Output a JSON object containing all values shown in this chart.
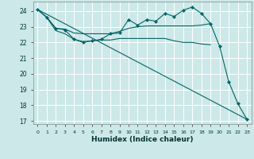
{
  "xlabel": "Humidex (Indice chaleur)",
  "bg_color": "#cce8e8",
  "grid_color": "#ffffff",
  "line_color": "#006666",
  "xlim": [
    -0.5,
    23.5
  ],
  "ylim": [
    16.8,
    24.6
  ],
  "yticks": [
    17,
    18,
    19,
    20,
    21,
    22,
    23,
    24
  ],
  "xticks": [
    0,
    1,
    2,
    3,
    4,
    5,
    6,
    7,
    8,
    9,
    10,
    11,
    12,
    13,
    14,
    15,
    16,
    17,
    18,
    19,
    20,
    21,
    22,
    23
  ],
  "series": [
    {
      "x": [
        0,
        1,
        2,
        3,
        4,
        5,
        6,
        7,
        8,
        9,
        10,
        11,
        12,
        13,
        14,
        15,
        16,
        17,
        18,
        19,
        20,
        21,
        22,
        23
      ],
      "y": [
        24.1,
        23.6,
        22.9,
        22.8,
        22.2,
        22.0,
        22.1,
        22.2,
        22.55,
        22.6,
        23.45,
        23.1,
        23.45,
        23.35,
        23.85,
        23.65,
        24.05,
        24.25,
        23.85,
        23.2,
        21.75,
        19.5,
        18.1,
        17.1
      ],
      "marker": true
    },
    {
      "x": [
        0,
        1,
        2,
        3,
        4,
        5,
        6,
        7,
        8,
        9,
        10,
        11,
        12,
        13,
        14,
        15,
        16,
        17,
        18,
        19
      ],
      "y": [
        24.1,
        23.6,
        22.9,
        22.85,
        22.6,
        22.55,
        22.55,
        22.55,
        22.55,
        22.7,
        22.9,
        23.0,
        23.05,
        23.05,
        23.05,
        23.05,
        23.05,
        23.05,
        23.1,
        23.2
      ],
      "marker": false
    },
    {
      "x": [
        0,
        1,
        2,
        3,
        4,
        5,
        6,
        7,
        8,
        9,
        10,
        11,
        12,
        13,
        14,
        15,
        16,
        17,
        18,
        19
      ],
      "y": [
        24.1,
        23.6,
        22.75,
        22.55,
        22.2,
        22.05,
        22.1,
        22.15,
        22.15,
        22.25,
        22.25,
        22.25,
        22.25,
        22.25,
        22.25,
        22.1,
        22.0,
        22.0,
        21.9,
        21.85
      ],
      "marker": false
    },
    {
      "x": [
        0,
        23
      ],
      "y": [
        24.1,
        17.1
      ],
      "marker": false
    }
  ]
}
